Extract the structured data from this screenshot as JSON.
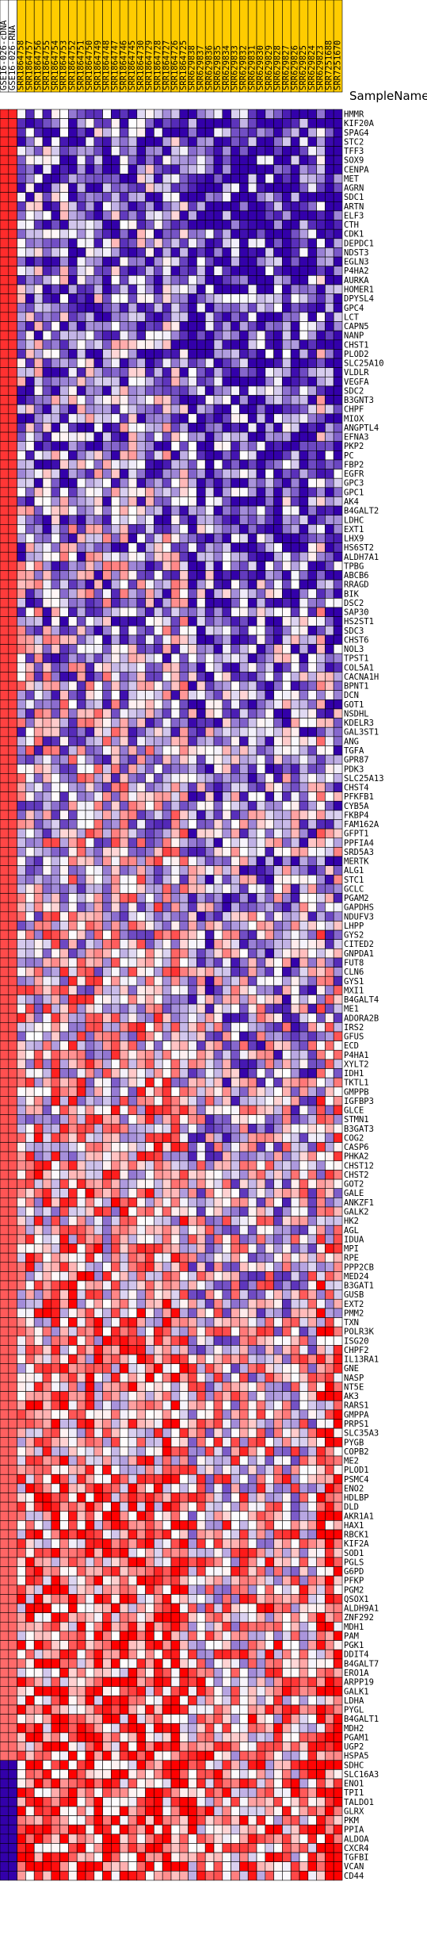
{
  "chart_data": {
    "type": "heatmap",
    "row_header": "SampleName",
    "samples": [
      "GSE16-026-cDNA",
      "GSE16-026-RNA",
      "SRR1864758",
      "SRR1864757",
      "SRR1864756",
      "SRR1864755",
      "SRR1864754",
      "SRR1864753",
      "SRR1864752",
      "SRR1864751",
      "SRR1864750",
      "SRR1864749",
      "SRR1864748",
      "SRR1864747",
      "SRR1864746",
      "SRR1864745",
      "SRR1864730",
      "SRR1864729",
      "SRR1864728",
      "SRR1864727",
      "SRR1864726",
      "SRR1864725",
      "SRR629838",
      "SRR629837",
      "SRR629836",
      "SRR629835",
      "SRR629834",
      "SRR629833",
      "SRR629832",
      "SRR629831",
      "SRR629830",
      "SRR629829",
      "SRR629828",
      "SRR629827",
      "SRR629826",
      "SRR629825",
      "SRR629824",
      "SRR629823",
      "SRR7251688",
      "SRR7251670"
    ],
    "header_colors": {
      "reference": "#ffffff",
      "sample": "#ffcc00"
    },
    "color_scale": {
      "high": "#ff0000",
      "mid": "#ffffff",
      "low": "#3300aa"
    },
    "genes": [
      "HMMR",
      "KIF20A",
      "SPAG4",
      "STC2",
      "TFF3",
      "SOX9",
      "CENPA",
      "MET",
      "AGRN",
      "SDC1",
      "ARTN",
      "ELF3",
      "CTH",
      "CDK1",
      "DEPDC1",
      "NDST3",
      "EGLN3",
      "P4HA2",
      "AURKA",
      "HOMER1",
      "DPYSL4",
      "GPC4",
      "LCT",
      "CAPN5",
      "NANP",
      "CHST1",
      "PLOD2",
      "SLC25A10",
      "VLDLR",
      "VEGFA",
      "SDC2",
      "B3GNT3",
      "CHPF",
      "MIOX",
      "ANGPTL4",
      "EFNA3",
      "PKP2",
      "PC",
      "FBP2",
      "EGFR",
      "GPC3",
      "GPC1",
      "AK4",
      "B4GALT2",
      "LDHC",
      "EXT1",
      "LHX9",
      "HS6ST2",
      "ALDH7A1",
      "TPBG",
      "ABCB6",
      "RRAGD",
      "BIK",
      "DSC2",
      "SAP30",
      "HS2ST1",
      "SDC3",
      "CHST6",
      "NOL3",
      "TPST1",
      "COL5A1",
      "CACNA1H",
      "BPNT1",
      "DCN",
      "GOT1",
      "NSDHL",
      "KDELR3",
      "GAL3ST1",
      "ANG",
      "TGFA",
      "GPR87",
      "PDK3",
      "SLC25A13",
      "CHST4",
      "PFKFB1",
      "CYB5A",
      "FKBP4",
      "FAM162A",
      "GFPT1",
      "PPFIA4",
      "SRD5A3",
      "MERTK",
      "ALG1",
      "STC1",
      "GCLC",
      "PGAM2",
      "GAPDHS",
      "NDUFV3",
      "LHPP",
      "GYS2",
      "CITED2",
      "GNPDA1",
      "FUT8",
      "CLN6",
      "GYS1",
      "MXI1",
      "B4GALT4",
      "ME1",
      "ADORA2B",
      "IRS2",
      "GFUS",
      "ECD",
      "P4HA1",
      "XYLT2",
      "IDH1",
      "TKTL1",
      "GMPPB",
      "IGFBP3",
      "GLCE",
      "STMN1",
      "B3GAT3",
      "COG2",
      "CASP6",
      "PHKA2",
      "CHST12",
      "CHST2",
      "GOT2",
      "GALE",
      "ANKZF1",
      "GALK2",
      "HK2",
      "AGL",
      "IDUA",
      "MPI",
      "RPE",
      "PPP2CB",
      "MED24",
      "B3GAT1",
      "GUSB",
      "EXT2",
      "PMM2",
      "TXN",
      "POLR3K",
      "ISG20",
      "CHPF2",
      "IL13RA1",
      "GNE",
      "NASP",
      "NT5E",
      "AK3",
      "RARS1",
      "GMPPA",
      "PRPS1",
      "SLC35A3",
      "PYGB",
      "COPB2",
      "ME2",
      "PLOD1",
      "PSMC4",
      "ENO2",
      "HDLBP",
      "DLD",
      "AKR1A1",
      "HAX1",
      "RBCK1",
      "KIF2A",
      "SOD1",
      "PGLS",
      "G6PD",
      "PFKP",
      "PGM2",
      "QSOX1",
      "ALDH9A1",
      "ZNF292",
      "MDH1",
      "PAM",
      "PGK1",
      "DDIT4",
      "B4GALT7",
      "ERO1A",
      "ARPP19",
      "GALK1",
      "LDHA",
      "PYGL",
      "B4GALT1",
      "MDH2",
      "PGAM1",
      "UGP2",
      "HSPA5",
      "SDHC",
      "SLC16A3",
      "ENO1",
      "TPI1",
      "TALDO1",
      "GLRX",
      "PKM",
      "PPIA",
      "ALDOA",
      "CXCR4",
      "TGFBI",
      "VCAN",
      "CD44"
    ]
  }
}
